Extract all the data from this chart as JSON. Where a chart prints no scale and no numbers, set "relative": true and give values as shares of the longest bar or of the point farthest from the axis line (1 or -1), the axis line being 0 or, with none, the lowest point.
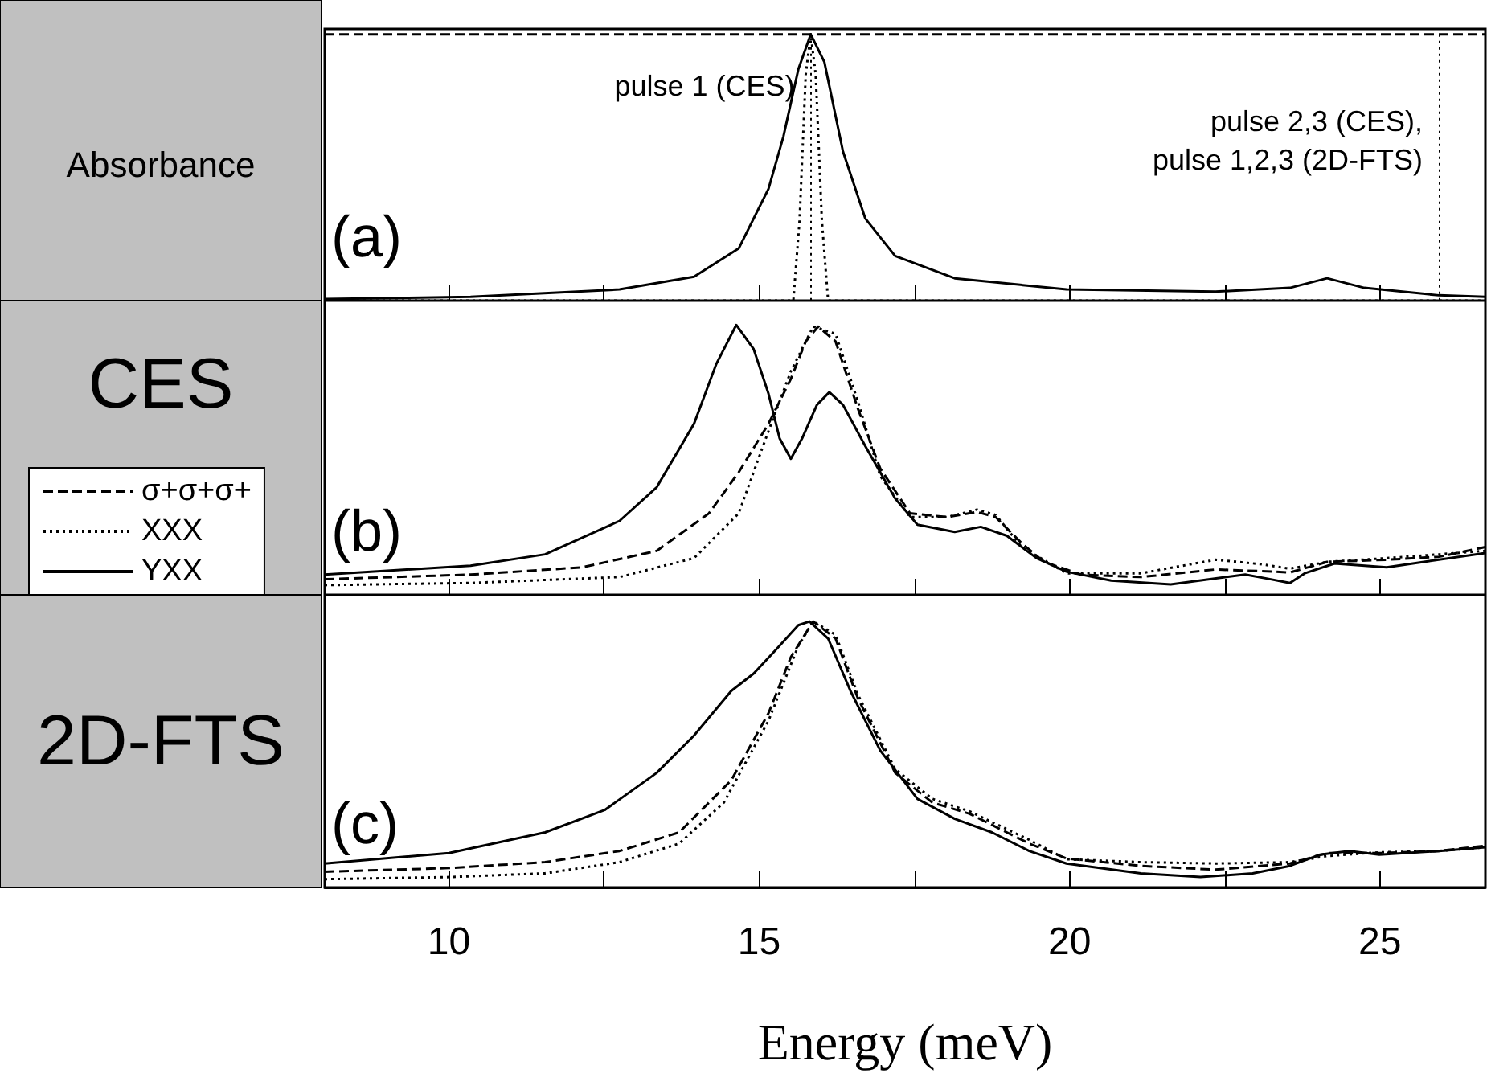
{
  "chart_data": [
    {
      "type": "line",
      "ylabel": "Absorbance",
      "relative": true,
      "xlim": [
        8,
        26.7
      ],
      "xticks": [
        10,
        {
          "value": 12.5,
          "label": null
        },
        15,
        {
          "value": 17.5,
          "label": null
        },
        20,
        {
          "value": 22.5,
          "label": null
        },
        25
      ],
      "tick_labels": false,
      "series": [
        {
          "color": "#000000",
          "line_style": "solid",
          "x": [
            8.0,
            10.35,
            12.75,
            13.95,
            14.67,
            15.15,
            15.39,
            15.63,
            15.83,
            16.05,
            16.35,
            16.71,
            17.19,
            18.15,
            19.95,
            22.35,
            23.55,
            24.15,
            24.75,
            25.95,
            26.7
          ],
          "values": [
            0.006,
            0.014,
            0.042,
            0.09,
            0.196,
            0.42,
            0.616,
            0.868,
            1.0,
            0.896,
            0.56,
            0.308,
            0.168,
            0.084,
            0.042,
            0.034,
            0.048,
            0.084,
            0.048,
            0.02,
            0.014
          ]
        },
        {
          "color": "#000000",
          "line_style": "dotted",
          "x": [
            8.0,
            15.55,
            15.65,
            15.75,
            15.83,
            15.91,
            16.01,
            16.11,
            26.7
          ],
          "values": [
            0,
            0,
            0.3,
            0.85,
            1.0,
            0.85,
            0.3,
            0,
            0
          ]
        },
        {
          "color": "#000000",
          "line_style": "dashed",
          "x": [
            8.0,
            26.7
          ],
          "values": [
            1.0,
            1.0
          ]
        }
      ],
      "ref_lines": [
        {
          "axis": "x",
          "value": 15.83,
          "label": "pulse 1 (CES)",
          "color": "#000000",
          "line_style": "dotted"
        },
        {
          "axis": "x",
          "value": 25.95,
          "label": "pulse 2,3 (CES),\npulse 1,2,3 (2D-FTS)",
          "color": "#000000",
          "line_style": "dotted"
        }
      ],
      "annotations": [
        "(a)"
      ]
    },
    {
      "type": "line",
      "ylabel": "CES",
      "relative": true,
      "xlim": [
        8,
        26.7
      ],
      "xticks": [
        10,
        {
          "value": 12.5,
          "label": null
        },
        15,
        {
          "value": 17.5,
          "label": null
        },
        20,
        {
          "value": 22.5,
          "label": null
        },
        25
      ],
      "tick_labels": false,
      "legend": "left",
      "series": [
        {
          "name": "σ+σ+σ+",
          "color": "#000000",
          "line_style": "dashed",
          "x": [
            8.0,
            10.35,
            12.15,
            13.35,
            14.19,
            14.67,
            15.15,
            15.51,
            15.75,
            15.95,
            16.23,
            16.59,
            16.95,
            17.43,
            18.03,
            18.51,
            18.81,
            19.23,
            19.59,
            20.19,
            21.15,
            22.35,
            23.31,
            23.55,
            24.15,
            25.11,
            25.95,
            26.7
          ],
          "values": [
            0.058,
            0.075,
            0.102,
            0.163,
            0.302,
            0.454,
            0.634,
            0.8,
            0.939,
            0.994,
            0.939,
            0.69,
            0.468,
            0.302,
            0.288,
            0.307,
            0.288,
            0.191,
            0.122,
            0.075,
            0.066,
            0.094,
            0.086,
            0.083,
            0.122,
            0.13,
            0.141,
            0.177
          ]
        },
        {
          "name": "XXX",
          "color": "#000000",
          "line_style": "dotted",
          "x": [
            8.0,
            10.35,
            12.75,
            13.95,
            14.67,
            15.15,
            15.51,
            15.87,
            16.23,
            16.59,
            16.95,
            17.43,
            18.03,
            18.51,
            18.81,
            19.23,
            19.95,
            21.15,
            22.35,
            23.07,
            23.55,
            24.15,
            25.11,
            25.95,
            26.7
          ],
          "values": [
            0.036,
            0.044,
            0.066,
            0.136,
            0.302,
            0.607,
            0.828,
            0.994,
            0.967,
            0.717,
            0.44,
            0.288,
            0.288,
            0.316,
            0.296,
            0.177,
            0.08,
            0.08,
            0.13,
            0.114,
            0.097,
            0.122,
            0.136,
            0.15,
            0.163
          ]
        },
        {
          "name": "YXX",
          "color": "#000000",
          "line_style": "solid",
          "x": [
            8.0,
            10.35,
            11.55,
            12.75,
            13.35,
            13.95,
            14.31,
            14.63,
            14.91,
            15.15,
            15.33,
            15.51,
            15.69,
            15.93,
            16.13,
            16.35,
            16.71,
            17.19,
            17.55,
            18.15,
            18.57,
            18.99,
            19.47,
            19.95,
            20.67,
            21.63,
            22.83,
            23.19,
            23.55,
            23.79,
            24.27,
            25.11,
            25.71,
            26.7
          ],
          "values": [
            0.075,
            0.108,
            0.15,
            0.274,
            0.399,
            0.634,
            0.856,
            1.0,
            0.911,
            0.745,
            0.579,
            0.504,
            0.579,
            0.704,
            0.751,
            0.704,
            0.551,
            0.357,
            0.26,
            0.233,
            0.252,
            0.219,
            0.136,
            0.086,
            0.053,
            0.039,
            0.075,
            0.06,
            0.044,
            0.08,
            0.116,
            0.102,
            0.122,
            0.155
          ]
        }
      ],
      "annotations": [
        "(b)"
      ]
    },
    {
      "type": "line",
      "ylabel": "2D-FTS",
      "xlabel": "Energy (meV)",
      "relative": true,
      "xlim": [
        8,
        26.7
      ],
      "xticks": [
        10,
        {
          "value": 12.5,
          "label": null
        },
        15,
        {
          "value": 17.5,
          "label": null
        },
        20,
        {
          "value": 22.5,
          "label": null
        },
        25
      ],
      "tick_labels": "x",
      "series": [
        {
          "color": "#000000",
          "line_style": "dashed",
          "x": [
            8.0,
            10.0,
            11.55,
            12.75,
            13.71,
            14.55,
            15.15,
            15.51,
            15.87,
            16.23,
            16.59,
            17.19,
            17.79,
            18.39,
            19.35,
            19.95,
            21.15,
            22.35,
            23.55,
            24.15,
            24.99,
            25.95,
            26.7
          ],
          "values": [
            0.059,
            0.073,
            0.095,
            0.137,
            0.207,
            0.403,
            0.655,
            0.866,
            1.0,
            0.936,
            0.711,
            0.431,
            0.319,
            0.277,
            0.165,
            0.109,
            0.081,
            0.067,
            0.09,
            0.129,
            0.129,
            0.137,
            0.157
          ]
        },
        {
          "color": "#000000",
          "line_style": "dotted",
          "x": [
            8.0,
            10.0,
            11.55,
            12.75,
            13.71,
            14.43,
            15.15,
            15.63,
            15.87,
            16.23,
            16.59,
            17.19,
            17.79,
            18.39,
            19.35,
            19.95,
            21.15,
            22.35,
            23.55,
            24.15,
            24.99,
            25.95,
            26.7
          ],
          "values": [
            0.031,
            0.039,
            0.053,
            0.095,
            0.165,
            0.319,
            0.627,
            0.908,
            1.0,
            0.95,
            0.725,
            0.445,
            0.333,
            0.286,
            0.179,
            0.106,
            0.095,
            0.09,
            0.095,
            0.118,
            0.132,
            0.137,
            0.151
          ]
        },
        {
          "color": "#000000",
          "line_style": "solid",
          "x": [
            8.0,
            10.0,
            11.55,
            12.51,
            13.35,
            13.95,
            14.55,
            14.91,
            15.27,
            15.63,
            15.81,
            16.11,
            16.47,
            16.95,
            17.55,
            18.15,
            18.75,
            19.35,
            19.95,
            21.15,
            22.11,
            22.95,
            23.55,
            24.03,
            24.51,
            24.99,
            25.95,
            26.7
          ],
          "values": [
            0.09,
            0.129,
            0.207,
            0.291,
            0.431,
            0.571,
            0.739,
            0.804,
            0.894,
            0.986,
            1.0,
            0.936,
            0.739,
            0.515,
            0.333,
            0.258,
            0.207,
            0.137,
            0.09,
            0.053,
            0.039,
            0.053,
            0.081,
            0.123,
            0.137,
            0.123,
            0.137,
            0.151
          ]
        }
      ],
      "annotations": [
        "(c)"
      ]
    }
  ]
}
